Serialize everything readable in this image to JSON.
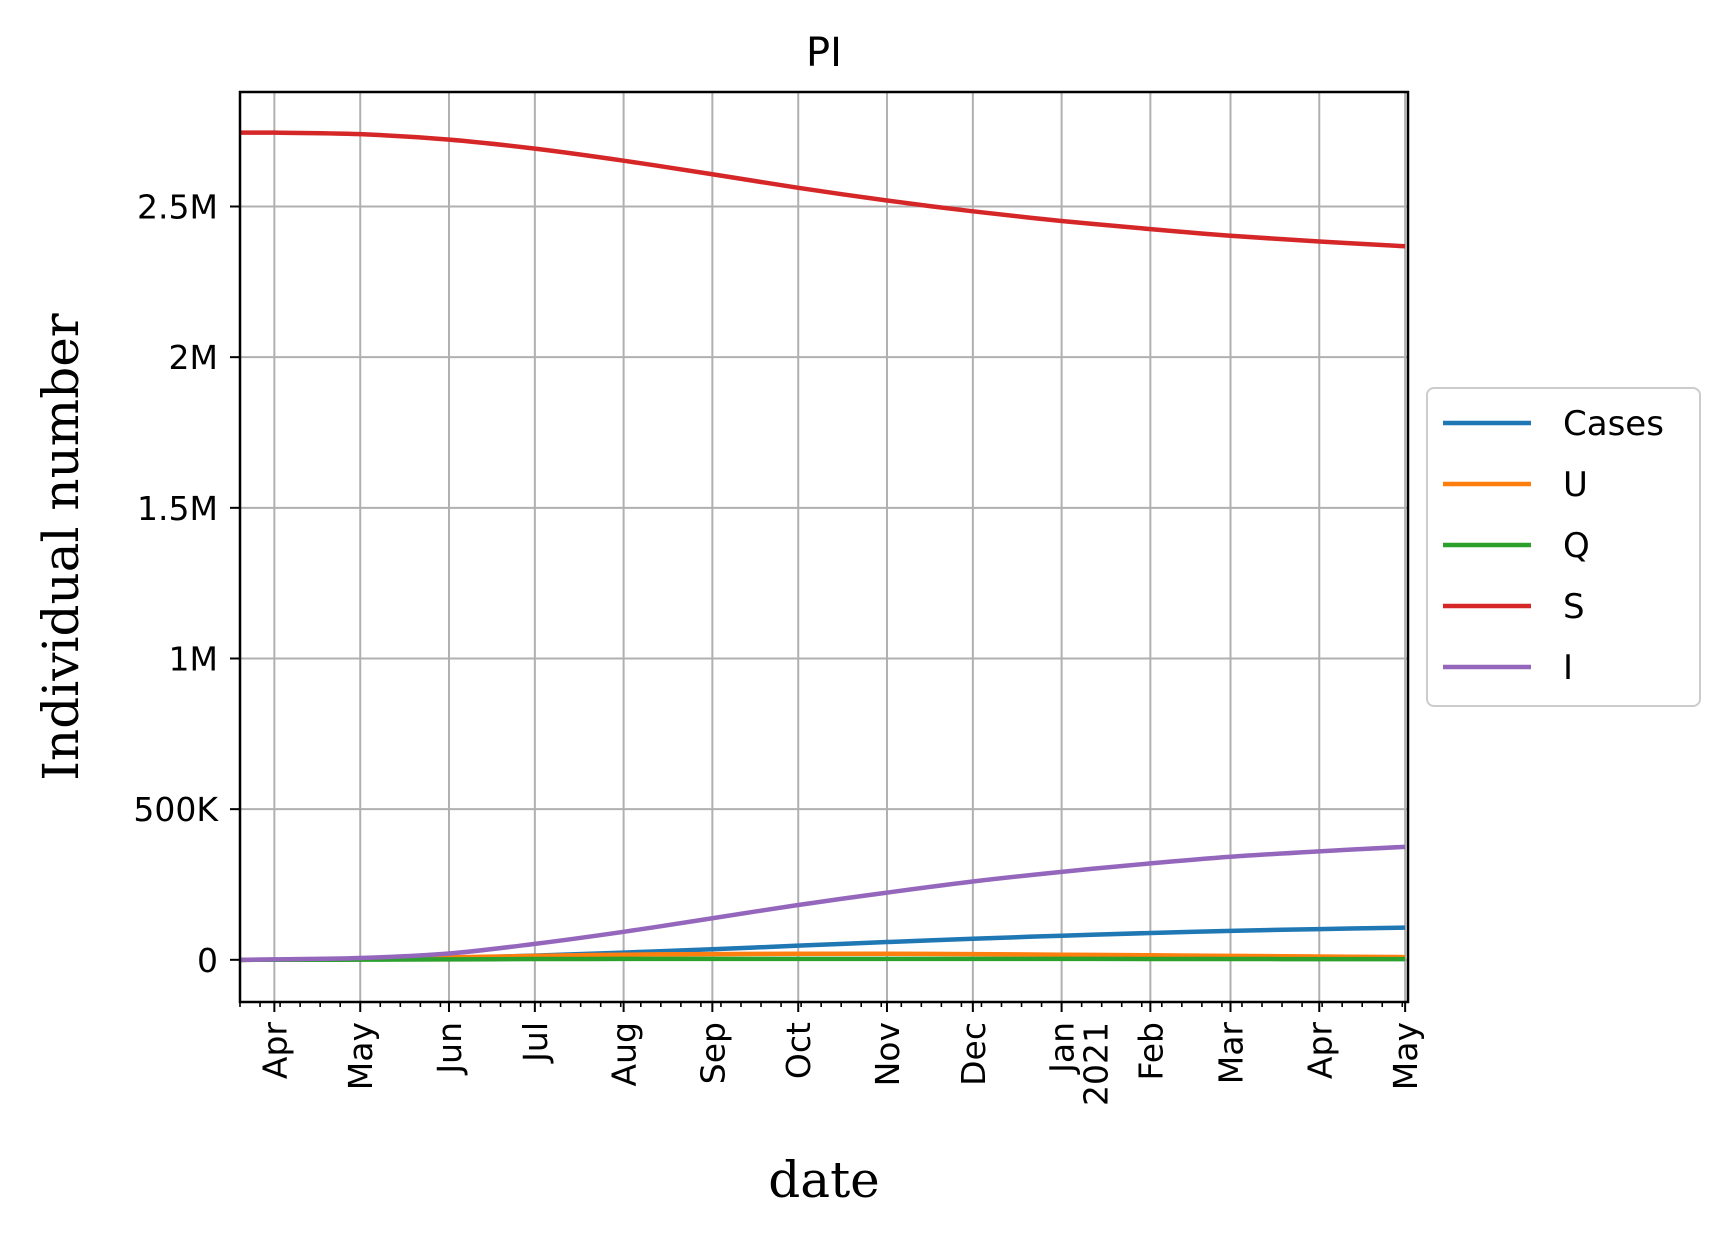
{
  "chart_data": {
    "type": "line",
    "title": "PI",
    "xlabel": "date",
    "ylabel": "Individual number",
    "x_range": [
      "2020-03-20",
      "2021-05-01"
    ],
    "ylim": [
      -140000,
      2880000
    ],
    "grid": true,
    "legend_placement": "center-right, outside plot",
    "y_ticks": [
      {
        "value": 0,
        "label": "0"
      },
      {
        "value": 500000,
        "label": "500K"
      },
      {
        "value": 1000000,
        "label": "1M"
      },
      {
        "value": 1500000,
        "label": "1.5M"
      },
      {
        "value": 2000000,
        "label": "2M"
      },
      {
        "value": 2500000,
        "label": "2.5M"
      }
    ],
    "x_ticks": [
      {
        "date": "2020-04-01",
        "label": "Apr"
      },
      {
        "date": "2020-05-01",
        "label": "May"
      },
      {
        "date": "2020-06-01",
        "label": "Jun"
      },
      {
        "date": "2020-07-01",
        "label": "Jul"
      },
      {
        "date": "2020-08-01",
        "label": "Aug"
      },
      {
        "date": "2020-09-01",
        "label": "Sep"
      },
      {
        "date": "2020-10-01",
        "label": "Oct"
      },
      {
        "date": "2020-11-01",
        "label": "Nov"
      },
      {
        "date": "2020-12-01",
        "label": "Dec"
      },
      {
        "date": "2021-01-01",
        "label": "Jan",
        "label2": "2021"
      },
      {
        "date": "2021-02-01",
        "label": "Feb"
      },
      {
        "date": "2021-03-01",
        "label": "Mar"
      },
      {
        "date": "2021-04-01",
        "label": "Apr"
      },
      {
        "date": "2021-05-01",
        "label": "May"
      }
    ],
    "x": [
      "2020-03-20",
      "2020-04-01",
      "2020-05-01",
      "2020-06-01",
      "2020-07-01",
      "2020-08-01",
      "2020-09-01",
      "2020-10-01",
      "2020-11-01",
      "2020-12-01",
      "2021-01-01",
      "2021-02-01",
      "2021-03-01",
      "2021-04-01",
      "2021-05-01"
    ],
    "series": [
      {
        "name": "Cases",
        "color": "#1f77b4",
        "values": [
          0,
          200,
          1500,
          6000,
          14000,
          24000,
          35000,
          47000,
          59000,
          70000,
          80000,
          89000,
          96000,
          102000,
          107000
        ]
      },
      {
        "name": "U",
        "color": "#ff7f0e",
        "values": [
          0,
          500,
          3000,
          8000,
          13000,
          17000,
          19000,
          20000,
          20000,
          19000,
          17000,
          15000,
          13000,
          11000,
          9000
        ]
      },
      {
        "name": "Q",
        "color": "#2ca02c",
        "values": [
          0,
          100,
          600,
          1500,
          2500,
          3000,
          3200,
          3300,
          3300,
          3200,
          3000,
          2800,
          2600,
          2400,
          2200
        ]
      },
      {
        "name": "S",
        "color": "#d62728",
        "values": [
          2745000,
          2745000,
          2740000,
          2722000,
          2692000,
          2652000,
          2607000,
          2562000,
          2520000,
          2484000,
          2452000,
          2425000,
          2403000,
          2384000,
          2368000
        ]
      },
      {
        "name": "I",
        "color": "#9467bd",
        "values": [
          0,
          1500,
          6000,
          21000,
          53000,
          93000,
          138000,
          182000,
          223000,
          260000,
          292000,
          320000,
          342000,
          360000,
          375000
        ]
      }
    ]
  }
}
